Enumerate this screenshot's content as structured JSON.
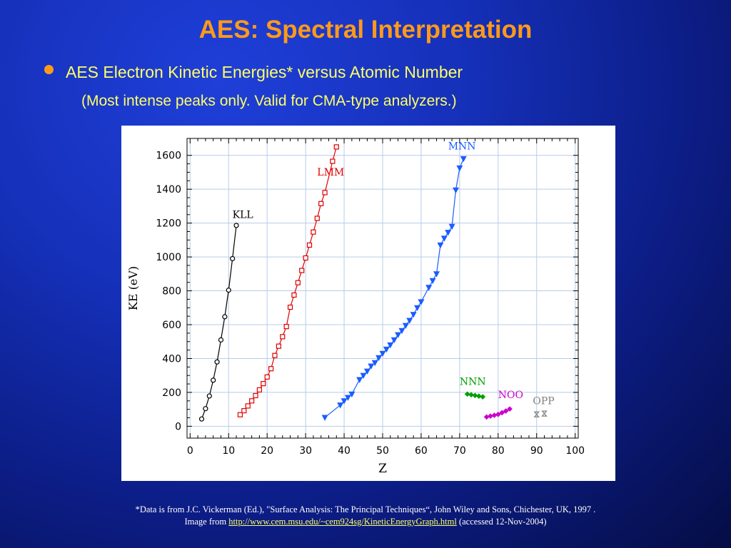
{
  "slide": {
    "title": "AES: Spectral Interpretation",
    "bullet": "AES Electron Kinetic Energies* versus Atomic Number",
    "subtitle": "(Most intense peaks only. Valid for CMA-type analyzers.)",
    "footnote_line1": "*Data is from J.C. Vickerman (Ed.), \"Surface Analysis: The Principal Techniques“, John Wiley and Sons, Chichester, UK, 1997 .",
    "footnote_image_prefix": "Image from",
    "footnote_link": "http://www.cem.msu.edu/~cem924sg/KineticEnergyGraph.html",
    "footnote_accessed": "(accessed 12-Nov-2004)",
    "colors": {
      "title": "#ff9a1a",
      "bullet_text": "#ffff66",
      "bullet_dot": "#ff9a1a",
      "background": "#1530b8"
    }
  },
  "chart_data": {
    "type": "scatter",
    "xlabel": "Z",
    "ylabel": "KE (eV)",
    "xlim": [
      0,
      100
    ],
    "ylim": [
      0,
      1600
    ],
    "xticks": [
      0,
      10,
      20,
      30,
      40,
      50,
      60,
      70,
      80,
      90,
      100
    ],
    "yticks": [
      0,
      200,
      400,
      600,
      800,
      1000,
      1200,
      1400,
      1600
    ],
    "grid": true,
    "series": [
      {
        "name": "KLL",
        "color": "#000000",
        "marker": "circle",
        "connected": true,
        "x": [
          3,
          4,
          5,
          6,
          7,
          8,
          9,
          10,
          11,
          12
        ],
        "y": [
          43,
          104,
          179,
          272,
          380,
          510,
          647,
          804,
          990,
          1186
        ]
      },
      {
        "name": "LMM",
        "color": "#e00000",
        "marker": "square",
        "connected": true,
        "x": [
          13,
          14,
          15,
          16,
          17,
          18,
          19,
          20,
          21,
          22,
          23,
          24,
          25,
          26,
          27,
          28,
          29,
          30,
          31,
          32,
          33,
          34,
          35,
          37,
          38
        ],
        "y": [
          68,
          92,
          120,
          150,
          181,
          215,
          252,
          291,
          340,
          418,
          473,
          529,
          589,
          703,
          775,
          848,
          920,
          994,
          1070,
          1147,
          1228,
          1315,
          1380,
          1565,
          1650
        ]
      },
      {
        "name": "MNN",
        "color": "#1a5cff",
        "marker": "triangle-down",
        "connected": true,
        "x": [
          35,
          39,
          40,
          41,
          42,
          44,
          45,
          46,
          47,
          48,
          49,
          50,
          51,
          52,
          53,
          54,
          55,
          56,
          57,
          58,
          59,
          60,
          62,
          63,
          64,
          65,
          66,
          67,
          68,
          69,
          70,
          71
        ],
        "y": [
          52,
          125,
          150,
          170,
          190,
          275,
          300,
          325,
          355,
          375,
          405,
          430,
          455,
          480,
          510,
          540,
          565,
          595,
          625,
          660,
          700,
          735,
          820,
          860,
          900,
          1070,
          1110,
          1145,
          1180,
          1395,
          1525,
          1580
        ]
      },
      {
        "name": "NNN",
        "color": "#00a000",
        "marker": "diamond",
        "connected": true,
        "x": [
          72,
          73,
          74,
          75,
          76
        ],
        "y": [
          190,
          186,
          182,
          178,
          174
        ]
      },
      {
        "name": "NOO",
        "color": "#cc00cc",
        "marker": "diamond",
        "connected": true,
        "x": [
          77,
          78,
          79,
          80,
          81,
          82,
          83
        ],
        "y": [
          55,
          60,
          65,
          70,
          80,
          90,
          102
        ]
      },
      {
        "name": "OPP",
        "color": "#808080",
        "marker": "hourglass",
        "connected": false,
        "x": [
          90,
          92
        ],
        "y": [
          70,
          75
        ]
      }
    ]
  }
}
